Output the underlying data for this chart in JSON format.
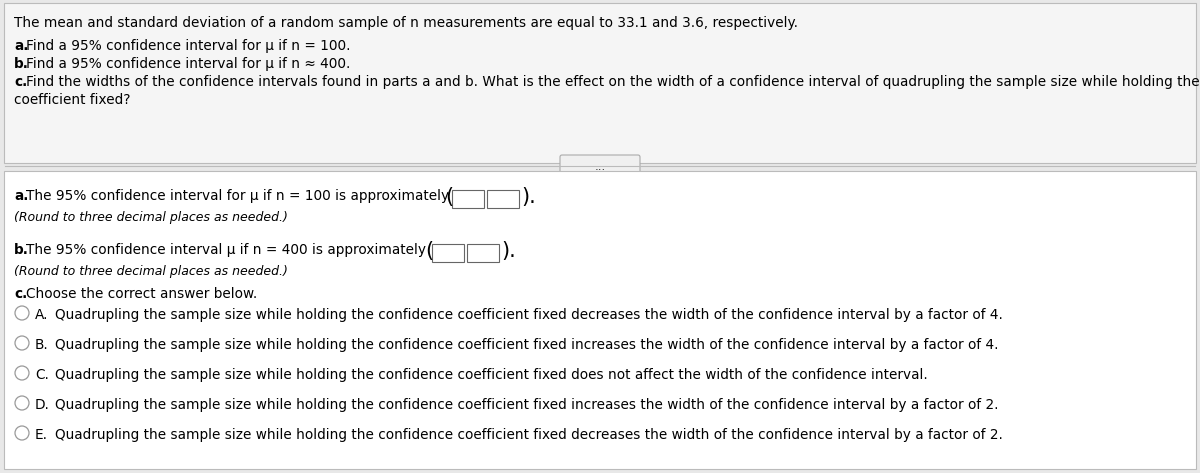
{
  "bg_color": "#e8e8e8",
  "white": "#ffffff",
  "black": "#000000",
  "light_gray_bg": "#f2f2f2",
  "border_color": "#bbbbbb",
  "top_lines": [
    "The mean and standard deviation of a random sample of n measurements are equal to 33.1 and 3.6, respectively.",
    "a. Find a 95% confidence interval for μ if n = 100.",
    "b. Find a 95% confidence interval for μ if n ≈ 400.",
    "c. Find the widths of the confidence intervals found in parts a and b. What is the effect on the width of a confidence interval of quadrupling the sample size while holding the confidence",
    "coefficient fixed?"
  ],
  "part_a_text1": "a. The 95% confidence interval for μ if n = 100 is approximately",
  "part_a_text2": "(Round to three decimal places as needed.)",
  "part_b_text1": "b. The 95% confidence interval μ if n = 400 is approximately",
  "part_b_text2": "(Round to three decimal places as needed.)",
  "part_c_header": "c. Choose the correct answer below.",
  "choice_A": "Quadrupling the sample size while holding the confidence coefficient fixed decreases the width of the confidence interval by a factor of 4.",
  "choice_B": "Quadrupling the sample size while holding the confidence coefficient fixed increases the width of the confidence interval by a factor of 4.",
  "choice_C": "Quadrupling the sample size while holding the confidence coefficient fixed does not affect the width of the confidence interval.",
  "choice_D": "Quadrupling the sample size while holding the confidence coefficient fixed increases the width of the confidence interval by a factor of 2.",
  "choice_E": "Quadrupling the sample size while holding the confidence coefficient fixed decreases the width of the confidence interval by a factor of 2.",
  "fs": 9.8,
  "fs_italic": 9.0
}
